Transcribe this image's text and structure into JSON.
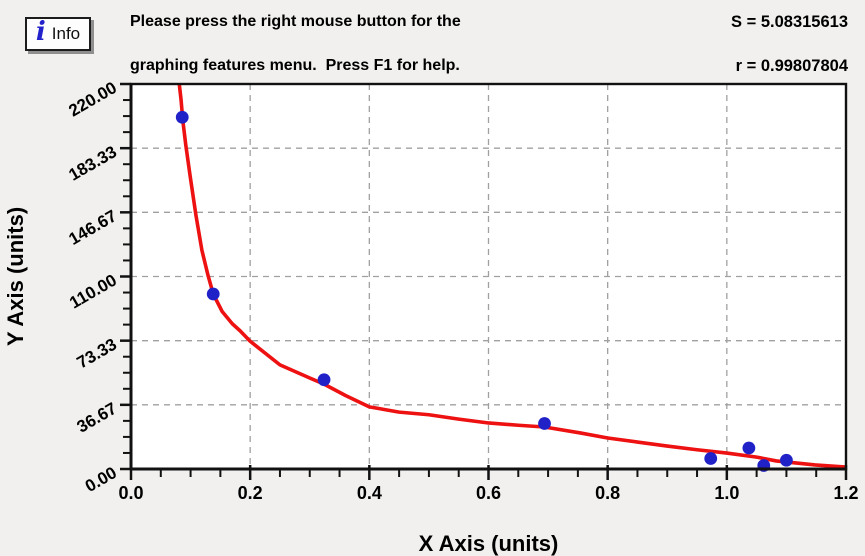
{
  "header": {
    "info_button": {
      "icon_glyph": "i",
      "icon_color": "#2222cc",
      "label": "Info"
    },
    "message": {
      "line1": "Please press the right mouse button for the",
      "line2": "graphing features menu.  Press F1 for help."
    },
    "stats": {
      "s_line": "S = 5.08315613",
      "r_line": "r = 0.99807804"
    }
  },
  "chart_data": {
    "type": "scatter",
    "title": "",
    "xlabel": "X Axis (units)",
    "ylabel": "Y Axis (units)",
    "xlim": [
      0.0,
      1.2
    ],
    "ylim": [
      0.0,
      220.0
    ],
    "x_tick_labels": [
      "0.0",
      "0.2",
      "0.4",
      "0.6",
      "0.8",
      "1.0",
      "1.2"
    ],
    "y_tick_labels": [
      "0.00",
      "36.67",
      "73.33",
      "110.00",
      "146.67",
      "183.33",
      "220.00"
    ],
    "x_minor_divisions": 4,
    "y_minor_divisions": 4,
    "grid": "dashed-major",
    "legend": "none",
    "fit_stats": {
      "S": 5.08315613,
      "r": 0.99807804
    },
    "points": [
      [
        0.086,
        201
      ],
      [
        0.138,
        100
      ],
      [
        0.324,
        51
      ],
      [
        0.694,
        26
      ],
      [
        0.973,
        6
      ],
      [
        1.037,
        12
      ],
      [
        1.062,
        2
      ],
      [
        1.1,
        5
      ]
    ],
    "fit_curve": [
      [
        0.081,
        220
      ],
      [
        0.084,
        211
      ],
      [
        0.087,
        199
      ],
      [
        0.092,
        185
      ],
      [
        0.099,
        168
      ],
      [
        0.109,
        145
      ],
      [
        0.119,
        125
      ],
      [
        0.129,
        111
      ],
      [
        0.138,
        100
      ],
      [
        0.153,
        90
      ],
      [
        0.17,
        83
      ],
      [
        0.183,
        79
      ],
      [
        0.2,
        73
      ],
      [
        0.25,
        59.5
      ],
      [
        0.3,
        52
      ],
      [
        0.324,
        48.5
      ],
      [
        0.36,
        42
      ],
      [
        0.4,
        35.5
      ],
      [
        0.45,
        32.5
      ],
      [
        0.5,
        31
      ],
      [
        0.55,
        28.5
      ],
      [
        0.6,
        26.3
      ],
      [
        0.65,
        25
      ],
      [
        0.694,
        24
      ],
      [
        0.754,
        20.6
      ],
      [
        0.8,
        17.7
      ],
      [
        0.85,
        15.4
      ],
      [
        0.9,
        13.1
      ],
      [
        0.95,
        11
      ],
      [
        1.0,
        9.1
      ],
      [
        1.05,
        6.8
      ],
      [
        1.083,
        4.6
      ],
      [
        1.148,
        2.3
      ],
      [
        1.2,
        1.1
      ]
    ],
    "colors": {
      "point": "#2121c8",
      "curve": "#ee1111",
      "grid": "#a0a0a0",
      "axis": "#111111",
      "plot_bg": "#ffffff",
      "page_bg": "#f1f0ee",
      "text": "#000000"
    }
  }
}
